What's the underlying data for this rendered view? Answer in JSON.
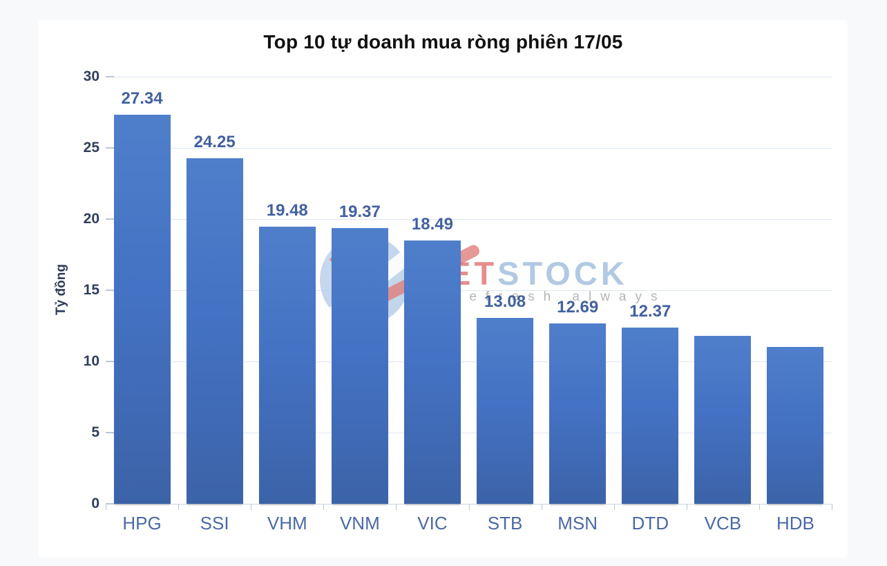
{
  "page": {
    "background_color": "#F8F9FA",
    "panel_color": "#FFFFFF"
  },
  "chart_data": {
    "type": "bar",
    "title": "Top 10 tự doanh mua ròng phiên 17/05",
    "xlabel": "",
    "ylabel": "Tỷ đồng",
    "categories": [
      "HPG",
      "SSI",
      "VHM",
      "VNM",
      "VIC",
      "STB",
      "MSN",
      "DTD",
      "VCB",
      "HDB"
    ],
    "values": [
      27.34,
      24.25,
      19.48,
      19.37,
      18.49,
      13.08,
      12.69,
      12.37,
      11.8,
      11.0
    ],
    "bar_labels": [
      "27.34",
      "24.25",
      "19.48",
      "19.37",
      "18.49",
      "13.08",
      "12.69",
      "12.37",
      "",
      ""
    ],
    "yticks": [
      "0",
      "5",
      "10",
      "15",
      "20",
      "25",
      "30"
    ],
    "ylim": [
      0,
      30
    ],
    "grid": true,
    "legend": false
  },
  "watermark": {
    "brand_red": "ET",
    "brand_blue": "STOCK",
    "tagline": "refresh always"
  },
  "colors": {
    "bar_fill": "#4472C4",
    "grid_line": "#DCE6F2",
    "axis_line": "#C9D5E6",
    "tick_mark": "#B9C6DA",
    "value_label": "#42619F",
    "x_tick_label": "#4A69A4",
    "y_tick_label": "#303E5C",
    "y_axis_title": "#2B3A57",
    "title": "#111111",
    "watermark_red": "#DF7171",
    "watermark_blue": "#A8C3E0",
    "watermark_gray": "#A8A8A8"
  }
}
